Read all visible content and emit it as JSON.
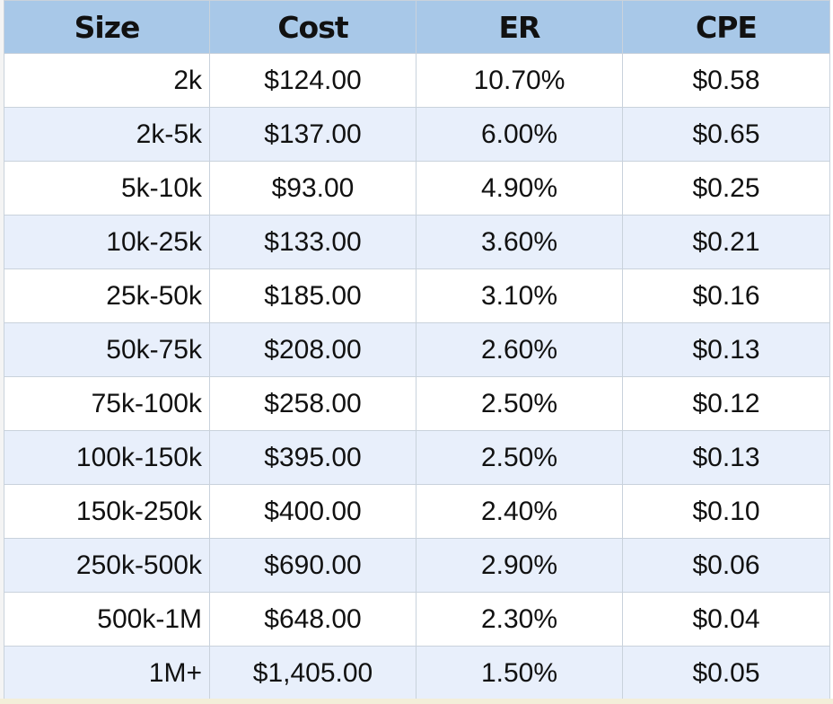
{
  "chart_data": {
    "type": "table",
    "columns": [
      "Size",
      "Cost",
      "ER",
      "CPE"
    ],
    "rows": [
      [
        "2k",
        "$124.00",
        "10.70%",
        "$0.58"
      ],
      [
        "2k-5k",
        "$137.00",
        "6.00%",
        "$0.65"
      ],
      [
        "5k-10k",
        "$93.00",
        "4.90%",
        "$0.25"
      ],
      [
        "10k-25k",
        "$133.00",
        "3.60%",
        "$0.21"
      ],
      [
        "25k-50k",
        "$185.00",
        "3.10%",
        "$0.16"
      ],
      [
        "50k-75k",
        "$208.00",
        "2.60%",
        "$0.13"
      ],
      [
        "75k-100k",
        "$258.00",
        "2.50%",
        "$0.12"
      ],
      [
        "100k-150k",
        "$395.00",
        "2.50%",
        "$0.13"
      ],
      [
        "150k-250k",
        "$400.00",
        "2.40%",
        "$0.10"
      ],
      [
        "250k-500k",
        "$690.00",
        "2.90%",
        "$0.06"
      ],
      [
        "500k-1M",
        "$648.00",
        "2.30%",
        "$0.04"
      ],
      [
        "1M+",
        "$1,405.00",
        "1.50%",
        "$0.05"
      ]
    ]
  },
  "colors": {
    "header_bg": "#a8c8e8",
    "row_alt_bg": "#e8effb",
    "row_bg": "#ffffff",
    "grid": "#c9d2dc"
  }
}
